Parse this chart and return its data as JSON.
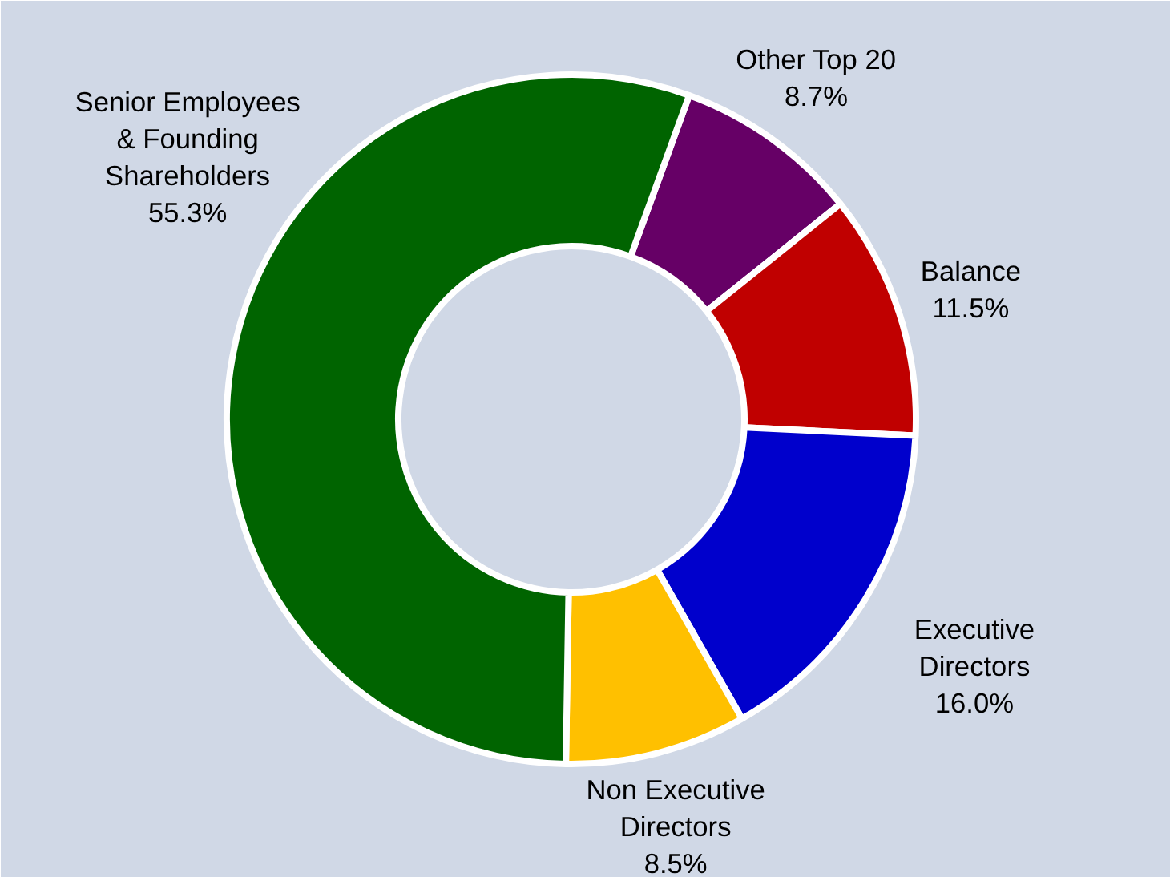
{
  "chart_data": {
    "type": "donut",
    "categories": [
      "Other Top 20",
      "Balance",
      "Executive Directors",
      "Non Executive Directors",
      "Senior Employees & Founding Shareholders"
    ],
    "values": [
      8.7,
      11.5,
      16.0,
      8.5,
      55.3
    ],
    "colors": [
      "#660066",
      "#c00000",
      "#0000cc",
      "#ffc000",
      "#006400"
    ],
    "value_labels": [
      "8.7%",
      "11.5%",
      "16.0%",
      "8.5%",
      "55.3%"
    ]
  }
}
